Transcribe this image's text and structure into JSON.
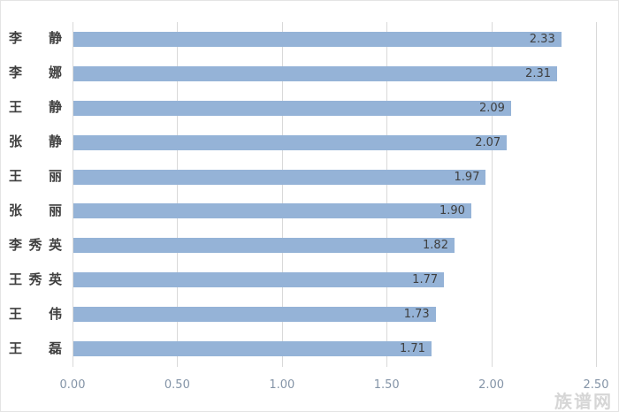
{
  "watermark": "族谱网",
  "chart_data": {
    "type": "bar",
    "orientation": "horizontal",
    "title": "",
    "xlabel": "",
    "ylabel": "",
    "categories": [
      "李 静",
      "李 娜",
      "王 静",
      "张 静",
      "王 丽",
      "张 丽",
      "李秀英",
      "王秀英",
      "王 伟",
      "王 磊"
    ],
    "values": [
      2.33,
      2.31,
      2.09,
      2.07,
      1.97,
      1.9,
      1.82,
      1.77,
      1.73,
      1.71
    ],
    "value_labels": [
      "2.33",
      "2.31",
      "2.09",
      "2.07",
      "1.97",
      "1.90",
      "1.82",
      "1.77",
      "1.73",
      "1.71"
    ],
    "xlim": [
      0,
      2.5
    ],
    "xticks": [
      "0.00",
      "0.50",
      "1.00",
      "1.50",
      "2.00",
      "2.50"
    ],
    "xtick_values": [
      0,
      0.5,
      1.0,
      1.5,
      2.0,
      2.5
    ],
    "grid": "vertical",
    "legend": "none",
    "bar_color": "#95B3D7",
    "gridline_color": "#d9d9d9",
    "value_label_color": "#3f3f3f",
    "category_label_color": "#404040",
    "axis_tick_color": "#8494a7"
  }
}
